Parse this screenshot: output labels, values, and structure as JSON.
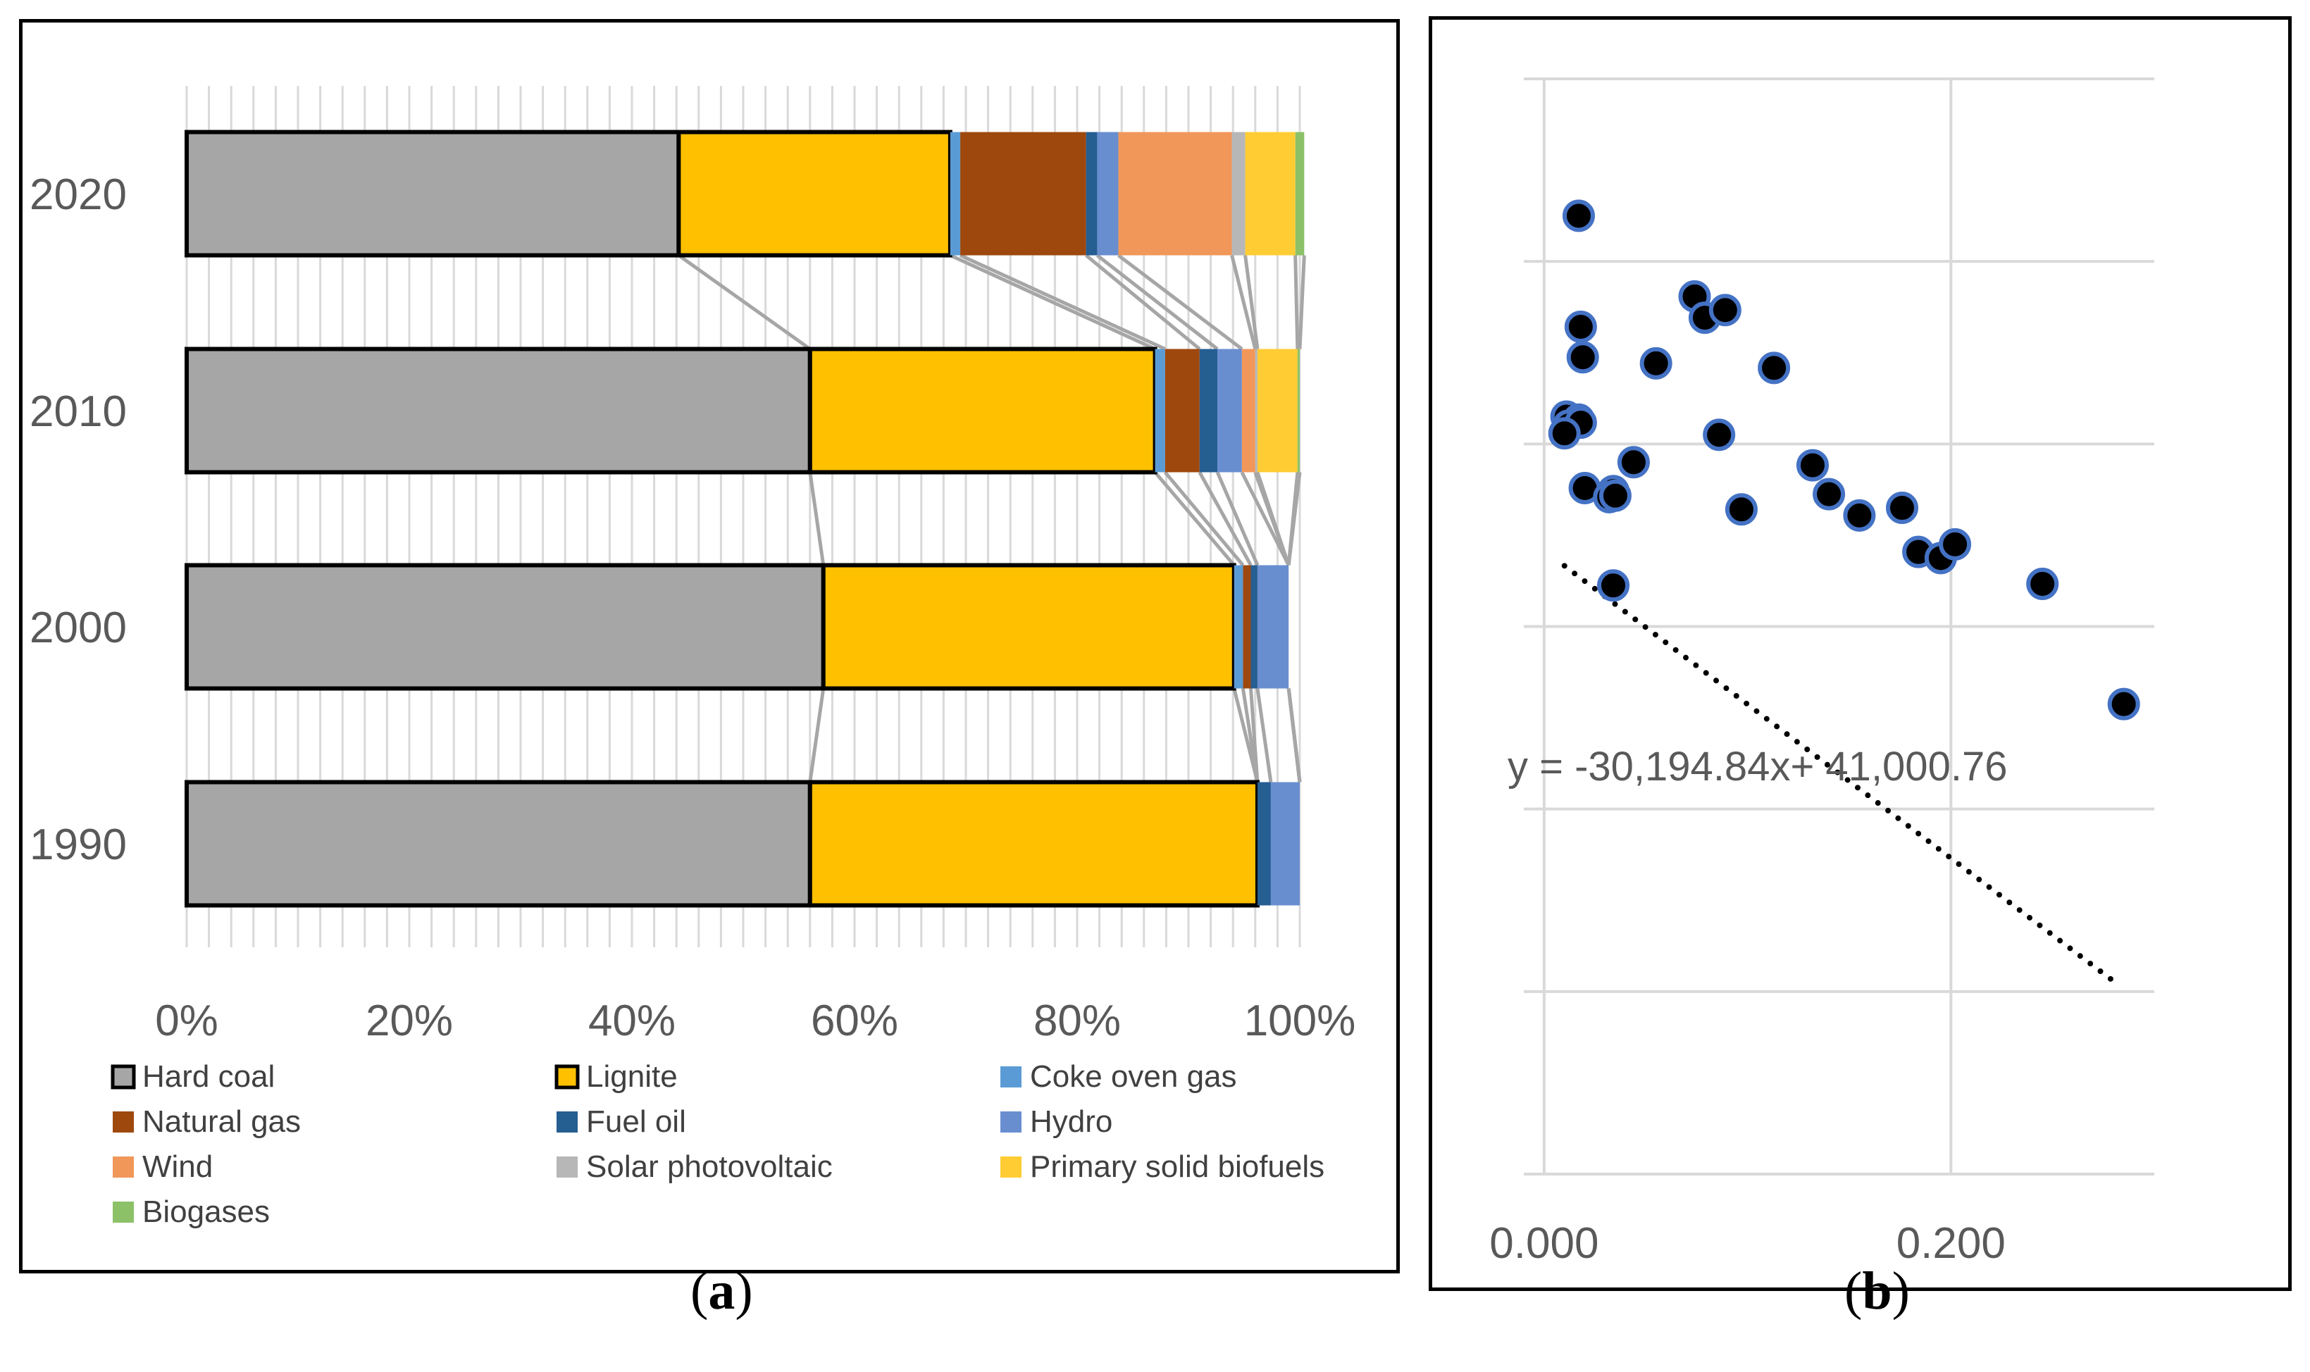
{
  "panel_labels": {
    "a": "a",
    "b": "b"
  },
  "chart_data": [
    {
      "type": "bar",
      "orientation": "horizontal",
      "stacked": "percent",
      "categories": [
        "2020",
        "2010",
        "2000",
        "1990"
      ],
      "xlim": [
        0,
        100
      ],
      "x_ticks": [
        "0%",
        "20%",
        "40%",
        "60%",
        "80%",
        "100%"
      ],
      "series": [
        {
          "name": "Hard coal",
          "color": "#A6A6A6",
          "outlined": true,
          "values": [
            44.2,
            56.0,
            57.2,
            56.0
          ]
        },
        {
          "name": "Lignite",
          "color": "#FFC000",
          "outlined": true,
          "values": [
            24.4,
            31.0,
            36.9,
            40.2
          ]
        },
        {
          "name": "Coke oven gas",
          "color": "#5B9BD5",
          "values": [
            0.9,
            0.9,
            0.8,
            0.0
          ]
        },
        {
          "name": "Natural gas",
          "color": "#9E480E",
          "values": [
            11.3,
            3.1,
            0.7,
            0.0
          ]
        },
        {
          "name": "Fuel oil",
          "color": "#255E91",
          "values": [
            1.0,
            1.6,
            0.6,
            1.2
          ]
        },
        {
          "name": "Hydro",
          "color": "#698ED0",
          "values": [
            1.9,
            2.2,
            2.8,
            2.6
          ]
        },
        {
          "name": "Wind",
          "color": "#F1975A",
          "values": [
            10.2,
            1.2,
            0.0,
            0.0
          ]
        },
        {
          "name": "Solar photovoltaic",
          "color": "#B7B7B7",
          "values": [
            1.2,
            0.2,
            0.0,
            0.0
          ]
        },
        {
          "name": "Primary solid biofuels",
          "color": "#FFCD33",
          "values": [
            4.5,
            3.6,
            0.0,
            0.0
          ]
        },
        {
          "name": "Biogases",
          "color": "#8CC168",
          "values": [
            0.8,
            0.2,
            0.0,
            0.0
          ]
        }
      ],
      "legend": "bottom",
      "connector_lines": true
    },
    {
      "type": "scatter",
      "x_ticks": [
        "0.000",
        "0.200"
      ],
      "xlim": [
        -0.01,
        0.3
      ],
      "ylim": [
        0,
        72000
      ],
      "grid": true,
      "trendline": {
        "style": "dotted",
        "label": "y = -30,194.84x+ 41,000.76",
        "x_start": 0.01,
        "x_end": 0.283
      },
      "points": [
        [
          0.017,
          63000
        ],
        [
          0.074,
          57700
        ],
        [
          0.079,
          56300
        ],
        [
          0.089,
          56800
        ],
        [
          0.018,
          55700
        ],
        [
          0.019,
          53700
        ],
        [
          0.055,
          53300
        ],
        [
          0.113,
          53000
        ],
        [
          0.011,
          49800
        ],
        [
          0.017,
          49600
        ],
        [
          0.012,
          49200
        ],
        [
          0.018,
          49400
        ],
        [
          0.01,
          48700
        ],
        [
          0.086,
          48600
        ],
        [
          0.044,
          46800
        ],
        [
          0.132,
          46600
        ],
        [
          0.02,
          45100
        ],
        [
          0.034,
          44900
        ],
        [
          0.032,
          44500
        ],
        [
          0.035,
          44600
        ],
        [
          0.14,
          44700
        ],
        [
          0.097,
          43700
        ],
        [
          0.155,
          43300
        ],
        [
          0.176,
          43800
        ],
        [
          0.184,
          40900
        ],
        [
          0.195,
          40500
        ],
        [
          0.202,
          41400
        ],
        [
          0.034,
          38700
        ],
        [
          0.245,
          38800
        ],
        [
          0.285,
          30900
        ]
      ]
    }
  ]
}
